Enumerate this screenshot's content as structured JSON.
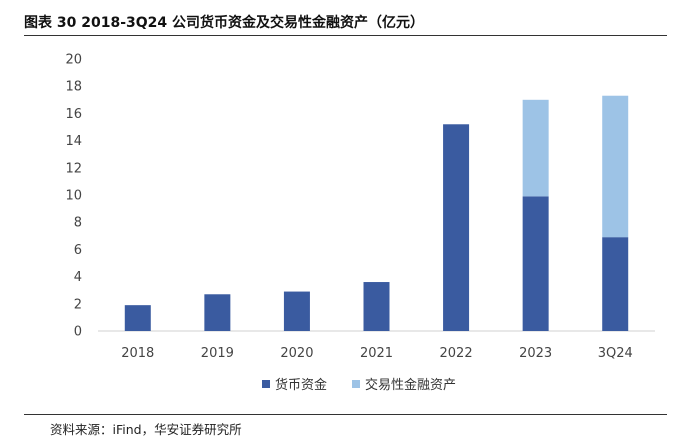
{
  "header": {
    "title": "图表 30 2018-3Q24 公司货币资金及交易性金融资产（亿元）"
  },
  "footer": {
    "source": "资料来源：iFind，华安证券研究所"
  },
  "colors": {
    "series_1": "#3A5BA0",
    "series_2": "#9DC3E6",
    "axis": "#d0d0d0"
  },
  "chart_data": {
    "type": "bar",
    "stacked": true,
    "categories": [
      "2018",
      "2019",
      "2020",
      "2021",
      "2022",
      "2023",
      "3Q24"
    ],
    "series": [
      {
        "name": "货币资金",
        "values": [
          1.9,
          2.7,
          2.9,
          3.6,
          15.2,
          9.9,
          6.9
        ]
      },
      {
        "name": "交易性金融资产",
        "values": [
          0,
          0,
          0,
          0,
          0,
          7.1,
          10.4
        ]
      }
    ],
    "ylim": [
      0,
      20
    ],
    "yticks": [
      "0",
      "2",
      "4",
      "6",
      "8",
      "10",
      "12",
      "14",
      "16",
      "18",
      "20"
    ],
    "grid": false,
    "legend": "bottom"
  }
}
